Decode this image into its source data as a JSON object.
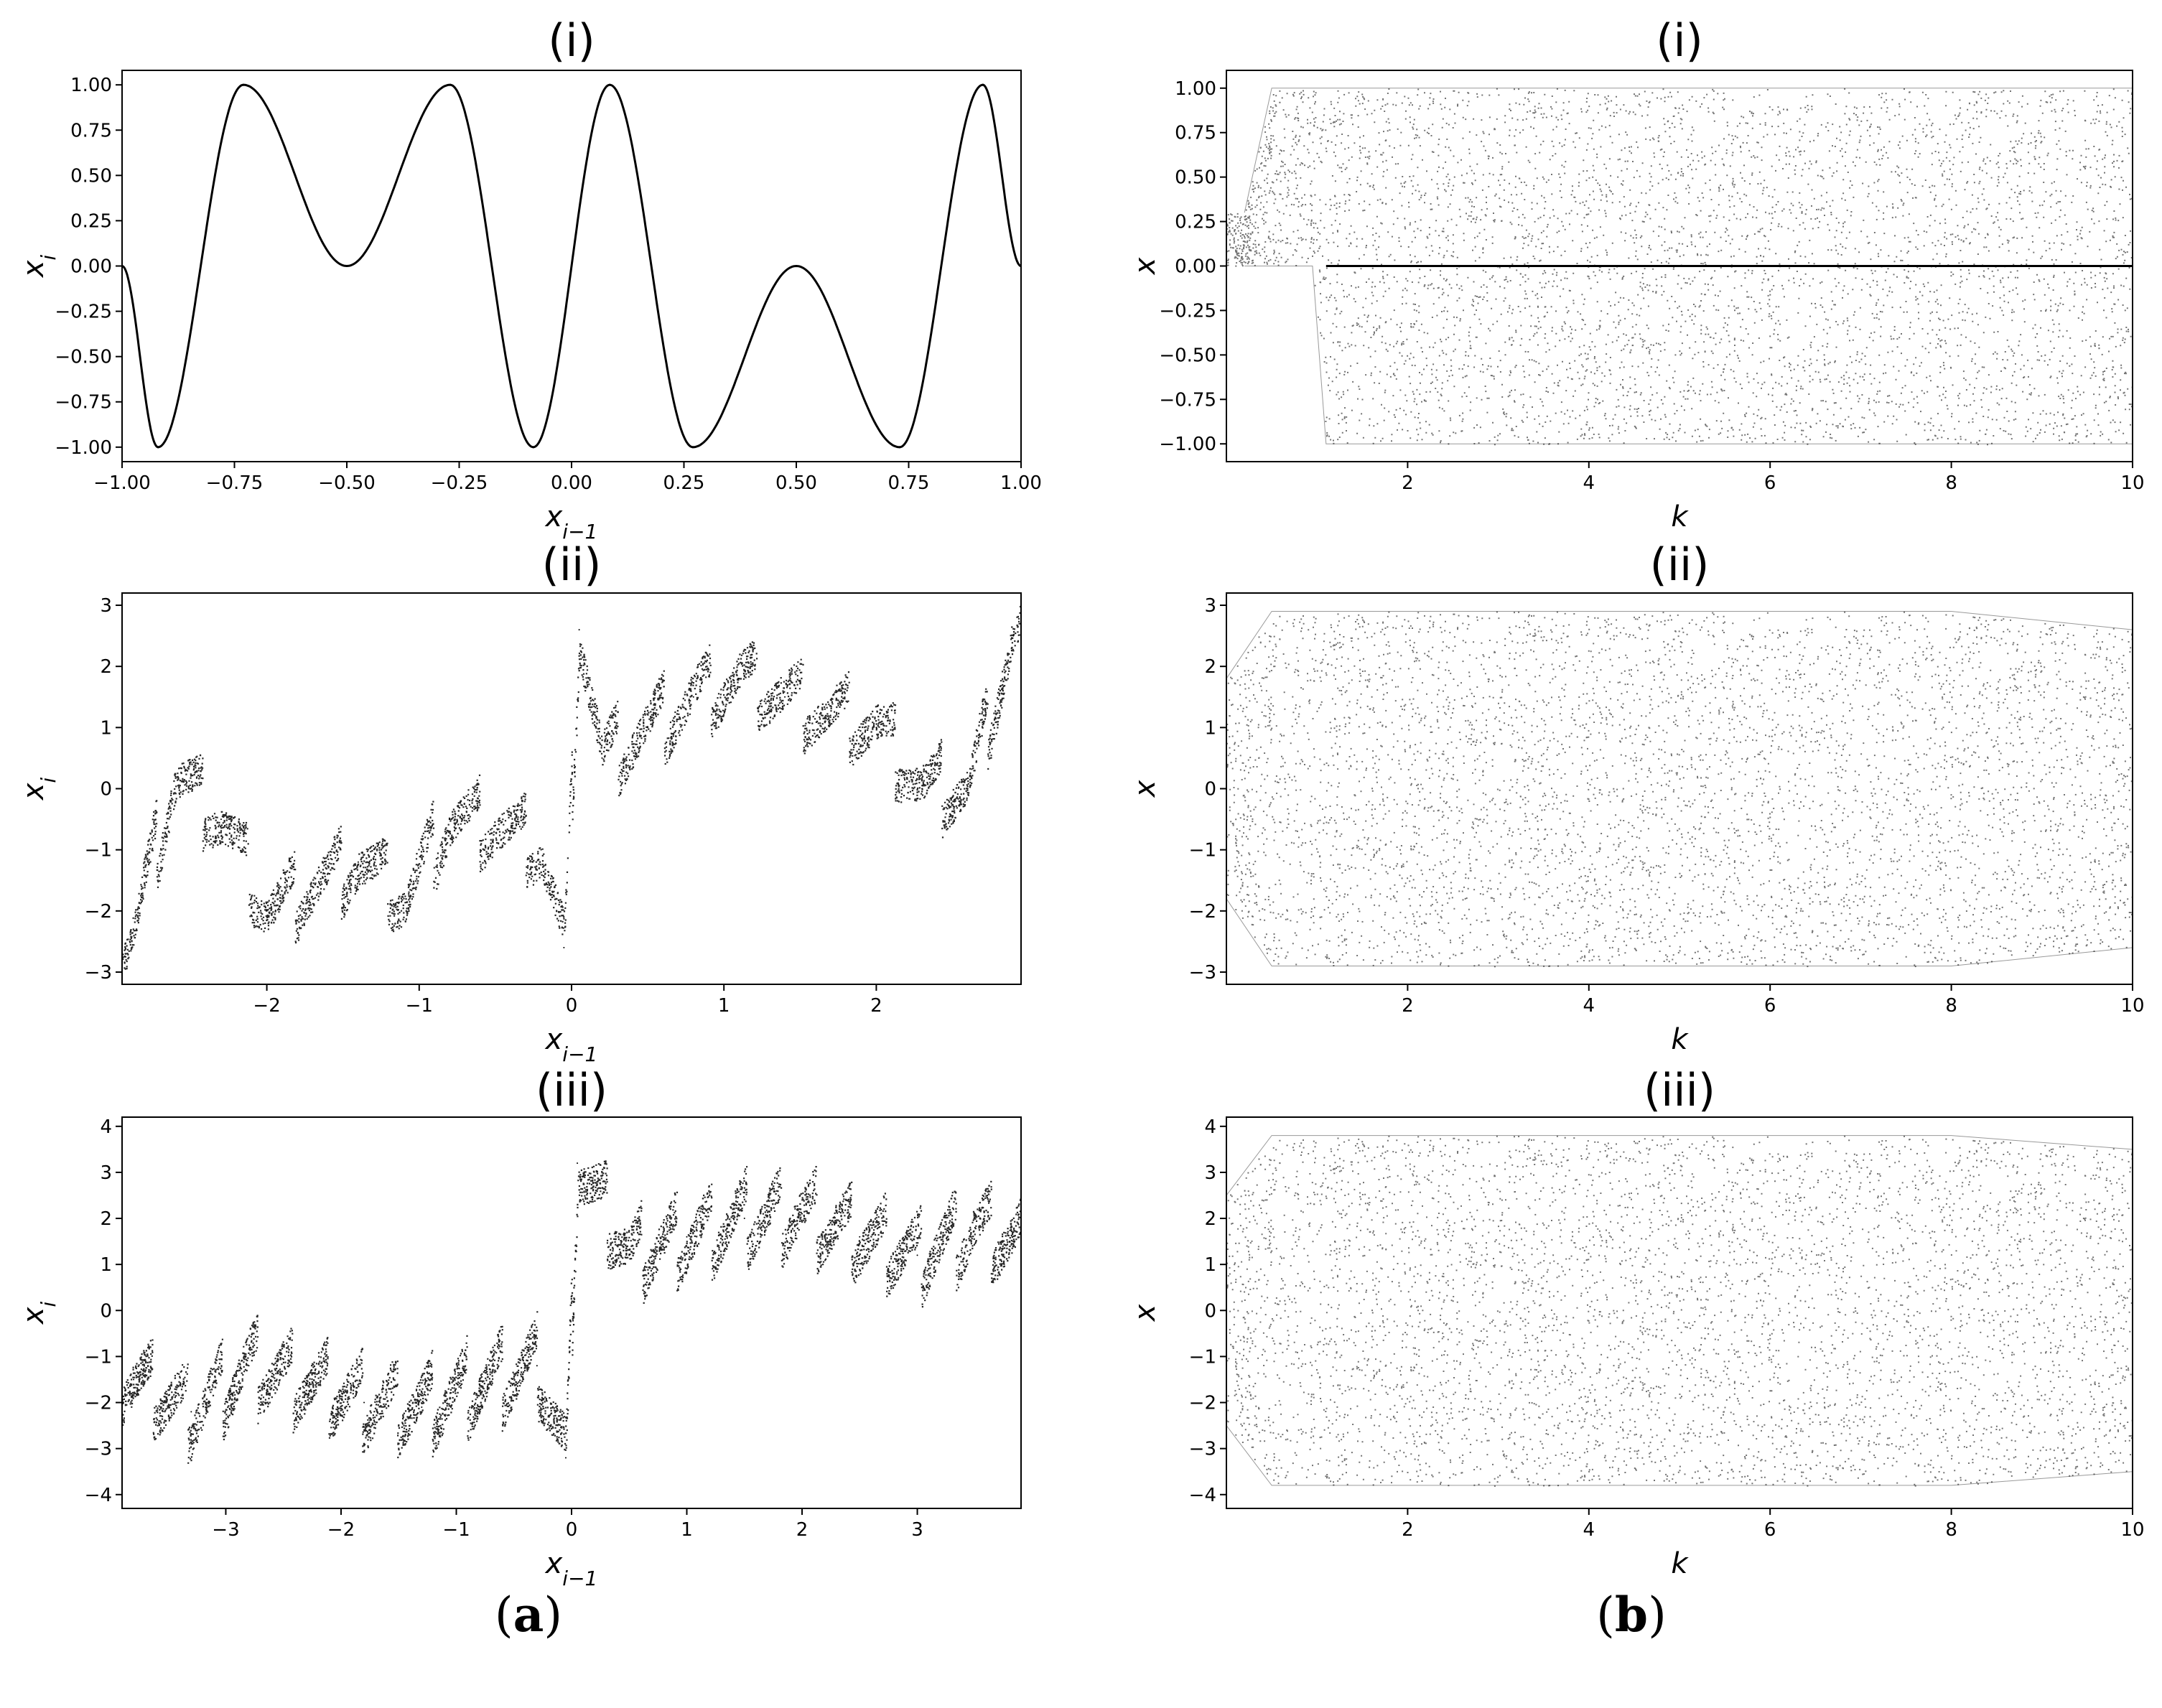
{
  "colors": {
    "ink": "#000000",
    "background": "#ffffff"
  },
  "figure_labels": {
    "a": "a",
    "b": "b"
  },
  "chart_data": [
    {
      "id": "a-i",
      "type": "line",
      "title": "(i)",
      "xlabel": "x_{i-1}",
      "ylabel": "x_i",
      "xlim": [
        -1,
        1
      ],
      "ylim": [
        -1.08,
        1.08
      ],
      "xticks": [
        -1.0,
        -0.75,
        -0.5,
        -0.25,
        0.0,
        0.25,
        0.5,
        0.75,
        1.0
      ],
      "xtick_labels": [
        "−1.00",
        "−0.75",
        "−0.50",
        "−0.25",
        "0.00",
        "0.25",
        "0.50",
        "0.75",
        "1.00"
      ],
      "yticks": [
        -1.0,
        -0.75,
        -0.5,
        -0.25,
        0.0,
        0.25,
        0.5,
        0.75,
        1.0
      ],
      "ytick_labels": [
        "−1.00",
        "−0.75",
        "−0.50",
        "−0.25",
        "0.00",
        "0.25",
        "0.50",
        "0.75",
        "1.00"
      ],
      "x": [
        -1.0,
        -0.92,
        -0.73,
        -0.5,
        -0.27,
        -0.085,
        0.085,
        0.27,
        0.5,
        0.73,
        0.915,
        1.0
      ],
      "y": [
        0.0,
        -1.0,
        1.0,
        0.0,
        1.0,
        -1.0,
        1.0,
        -1.0,
        0.0,
        -1.0,
        1.0,
        0.0
      ]
    },
    {
      "id": "a-ii",
      "type": "scatter",
      "title": "(ii)",
      "xlabel": "x_{i-1}",
      "ylabel": "x_i",
      "xlim": [
        -2.95,
        2.95
      ],
      "ylim": [
        -3.2,
        3.2
      ],
      "xticks": [
        -2,
        -1,
        0,
        1,
        2
      ],
      "xtick_labels": [
        "−2",
        "−1",
        "0",
        "1",
        "2"
      ],
      "yticks": [
        -3,
        -2,
        -1,
        0,
        1,
        2,
        3
      ],
      "ytick_labels": [
        "−3",
        "−2",
        "−1",
        "0",
        "1",
        "2",
        "3"
      ],
      "x": [
        -2.9,
        -2.6,
        -2.3,
        -2.0,
        -1.7,
        -1.4,
        -1.1,
        -0.8,
        -0.5,
        -0.2,
        -0.05,
        0.05,
        0.2,
        0.5,
        0.8,
        1.1,
        1.4,
        1.7,
        2.0,
        2.3,
        2.6,
        2.9
      ],
      "y": [
        -2.5,
        0.2,
        -0.5,
        -2.0,
        -1.6,
        -1.2,
        -1.8,
        -0.5,
        -0.6,
        -1.0,
        -2.6,
        2.6,
        0.5,
        1.0,
        1.5,
        1.8,
        1.5,
        1.2,
        1.0,
        0.0,
        0.0,
        2.5
      ]
    },
    {
      "id": "a-iii",
      "type": "scatter",
      "title": "(iii)",
      "xlabel": "x_{i-1}",
      "ylabel": "x_i",
      "xlim": [
        -3.9,
        3.9
      ],
      "ylim": [
        -4.3,
        4.2
      ],
      "xticks": [
        -3,
        -2,
        -1,
        0,
        1,
        2,
        3
      ],
      "xtick_labels": [
        "−3",
        "−2",
        "−1",
        "0",
        "1",
        "2",
        "3"
      ],
      "yticks": [
        -4,
        -3,
        -2,
        -1,
        0,
        1,
        2,
        3,
        4
      ],
      "ytick_labels": [
        "−4",
        "−3",
        "−2",
        "−1",
        "0",
        "1",
        "2",
        "3",
        "4"
      ],
      "x": [
        -3.8,
        -3.3,
        -2.8,
        -2.3,
        -1.8,
        -1.3,
        -0.8,
        -0.3,
        -0.05,
        0.05,
        0.5,
        1.0,
        1.5,
        2.0,
        2.5,
        3.0,
        3.5,
        3.8
      ],
      "y": [
        -1.5,
        -2.2,
        -1.2,
        -1.6,
        -2.0,
        -2.1,
        -1.6,
        -1.2,
        -3.2,
        3.2,
        1.2,
        1.6,
        2.0,
        2.1,
        1.6,
        1.2,
        1.8,
        1.5
      ]
    },
    {
      "id": "b-i",
      "type": "scatter",
      "title": "(i)",
      "xlabel": "k",
      "ylabel": "x",
      "xlim": [
        0,
        10
      ],
      "ylim": [
        -1.1,
        1.1
      ],
      "xticks": [
        2,
        4,
        6,
        8,
        10
      ],
      "xtick_labels": [
        "2",
        "4",
        "6",
        "8",
        "10"
      ],
      "yticks": [
        -1.0,
        -0.75,
        -0.5,
        -0.25,
        0.0,
        0.25,
        0.5,
        0.75,
        1.0
      ],
      "ytick_labels": [
        "−1.00",
        "−0.75",
        "−0.50",
        "−0.25",
        "0.00",
        "0.25",
        "0.50",
        "0.75",
        "1.00"
      ],
      "x": [
        0.2,
        0.5,
        0.95,
        1.1,
        2.0,
        4.0,
        6.0,
        8.0,
        10.0
      ],
      "y_min": [
        0.0,
        0.0,
        0.0,
        -1.0,
        -1.0,
        -1.0,
        -1.0,
        -1.0,
        -1.0
      ],
      "y_max": [
        0.3,
        1.0,
        1.0,
        1.0,
        1.0,
        1.0,
        1.0,
        1.0,
        1.0
      ]
    },
    {
      "id": "b-ii",
      "type": "scatter",
      "title": "(ii)",
      "xlabel": "k",
      "ylabel": "x",
      "xlim": [
        0,
        10
      ],
      "ylim": [
        -3.2,
        3.2
      ],
      "xticks": [
        2,
        4,
        6,
        8,
        10
      ],
      "xtick_labels": [
        "2",
        "4",
        "6",
        "8",
        "10"
      ],
      "yticks": [
        -3,
        -2,
        -1,
        0,
        1,
        2,
        3
      ],
      "ytick_labels": [
        "−3",
        "−2",
        "−1",
        "0",
        "1",
        "2",
        "3"
      ],
      "x": [
        0.0,
        0.5,
        2.0,
        4.0,
        6.0,
        8.0,
        10.0
      ],
      "y_min": [
        -1.8,
        -2.9,
        -2.9,
        -2.9,
        -2.9,
        -2.9,
        -2.6
      ],
      "y_max": [
        1.8,
        2.9,
        2.9,
        2.9,
        2.9,
        2.9,
        2.6
      ]
    },
    {
      "id": "b-iii",
      "type": "scatter",
      "title": "(iii)",
      "xlabel": "k",
      "ylabel": "x",
      "xlim": [
        0,
        10
      ],
      "ylim": [
        -4.3,
        4.2
      ],
      "xticks": [
        2,
        4,
        6,
        8,
        10
      ],
      "xtick_labels": [
        "2",
        "4",
        "6",
        "8",
        "10"
      ],
      "yticks": [
        -4,
        -3,
        -2,
        -1,
        0,
        1,
        2,
        3,
        4
      ],
      "ytick_labels": [
        "−4",
        "−3",
        "−2",
        "−1",
        "0",
        "1",
        "2",
        "3",
        "4"
      ],
      "x": [
        0.0,
        0.5,
        2.0,
        4.0,
        6.0,
        8.0,
        10.0
      ],
      "y_min": [
        -2.5,
        -3.8,
        -3.8,
        -3.8,
        -3.8,
        -3.8,
        -3.5
      ],
      "y_max": [
        2.5,
        3.8,
        3.8,
        3.8,
        3.8,
        3.8,
        3.5
      ]
    }
  ]
}
